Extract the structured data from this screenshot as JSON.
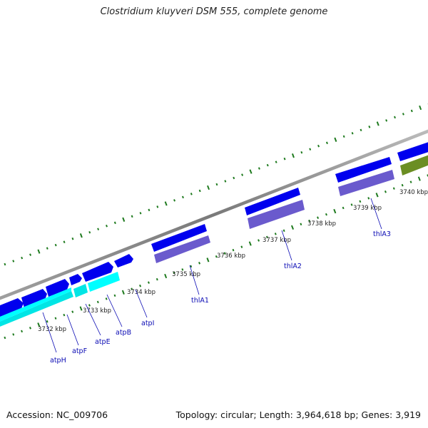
{
  "title": "Clostridium kluyveri DSM 555, complete genome",
  "footer": {
    "accession": "Accession: NC_009706",
    "stats": "Topology: circular; Length: 3,964,618 bp; Genes: 3,919"
  },
  "colors": {
    "backbone": "#8a8a8a",
    "tick": "#1e7a1e",
    "gene_forward": "#0000ee",
    "gene_blue_shadow": "#6a5acd",
    "gene_cyan": "#00ffff",
    "gene_olive": "#6b8e23",
    "label": "#0a0ab4"
  },
  "ruler_labels": [
    "3732 kbp",
    "3733 kbp",
    "3734 kbp",
    "3735 kbp",
    "3736 kbp",
    "3737 kbp",
    "3738 kbp",
    "3739 kbp",
    "3740 kbp"
  ],
  "gene_labels": [
    "atpH",
    "atpF",
    "atpE",
    "atpB",
    "atpI",
    "thlA1",
    "thlA2",
    "thlA3"
  ]
}
